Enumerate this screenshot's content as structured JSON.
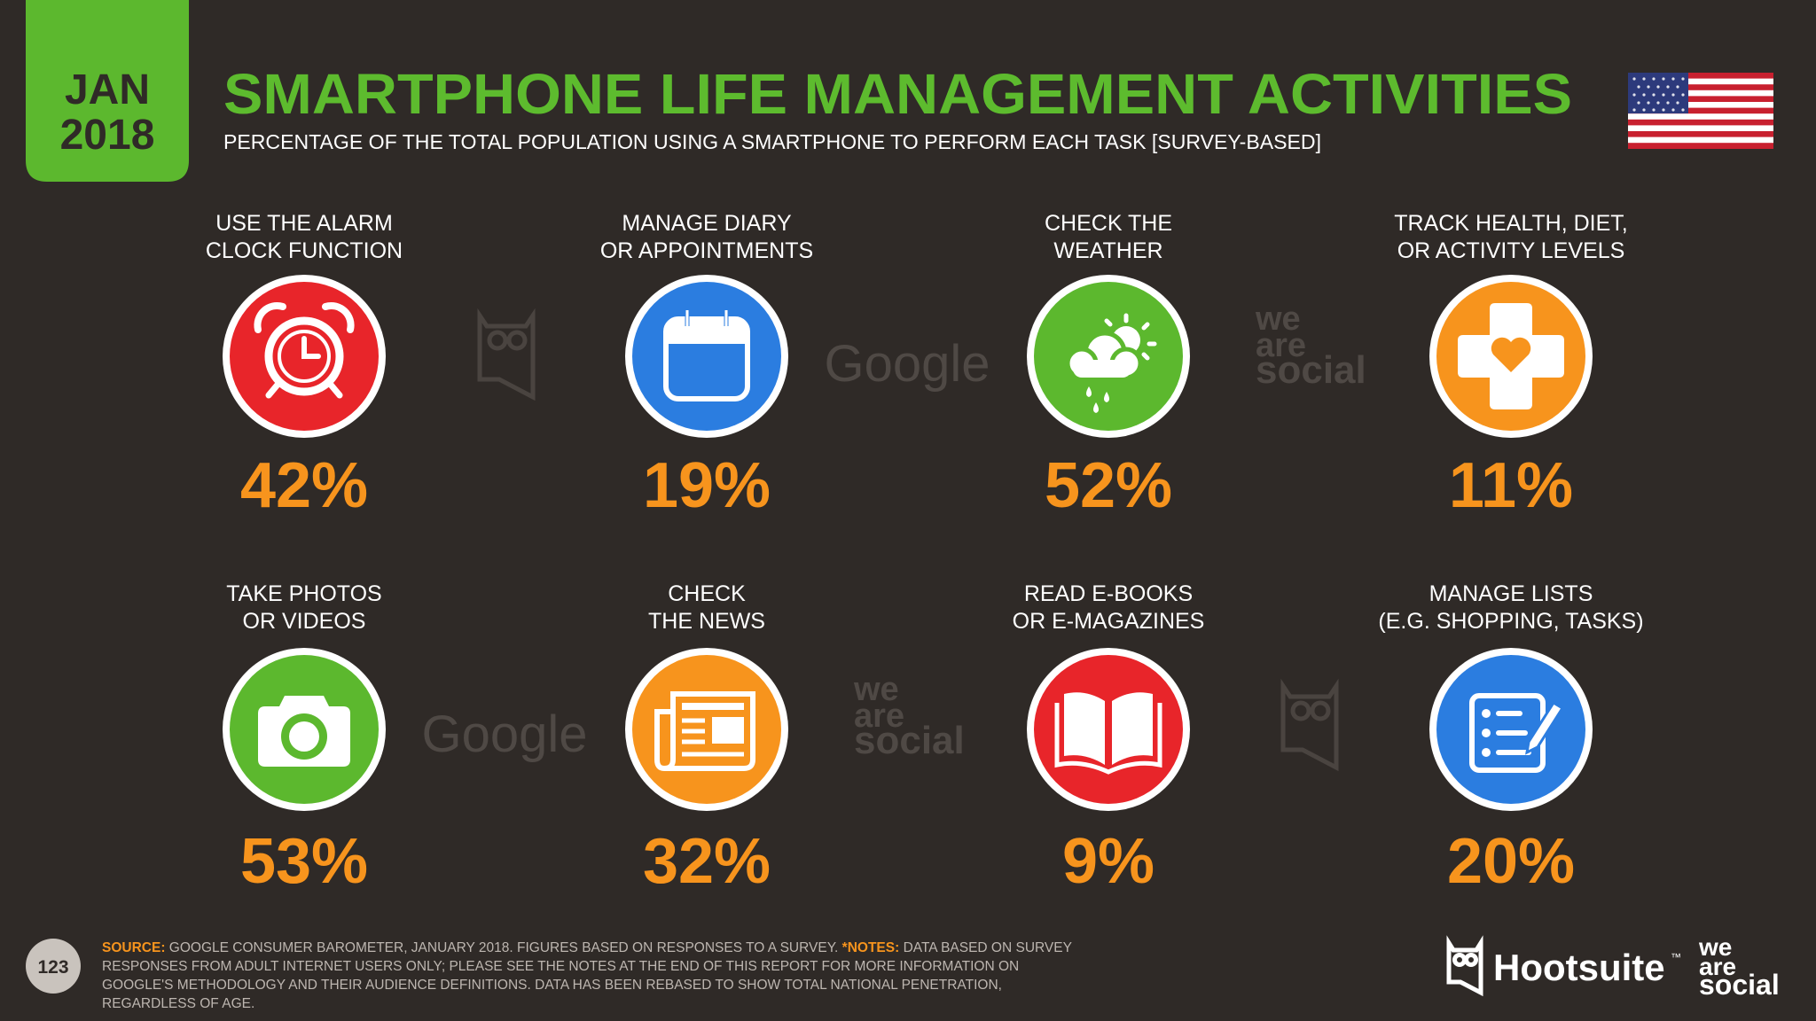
{
  "badge": {
    "month": "JAN",
    "year": "2018"
  },
  "header": {
    "title": "SMARTPHONE LIFE MANAGEMENT ACTIVITIES",
    "subtitle": "PERCENTAGE OF THE TOTAL POPULATION USING A SMARTPHONE TO PERFORM EACH TASK [SURVEY-BASED]"
  },
  "items": [
    {
      "label": [
        "USE THE ALARM",
        "CLOCK FUNCTION"
      ],
      "value": "42%"
    },
    {
      "label": [
        "MANAGE DIARY",
        "OR APPOINTMENTS"
      ],
      "value": "19%"
    },
    {
      "label": [
        "CHECK THE",
        "WEATHER"
      ],
      "value": "52%"
    },
    {
      "label": [
        "TRACK HEALTH, DIET,",
        "OR ACTIVITY LEVELS"
      ],
      "value": "11%"
    },
    {
      "label": [
        "TAKE PHOTOS",
        "OR VIDEOS"
      ],
      "value": "53%"
    },
    {
      "label": [
        "CHECK",
        "THE NEWS"
      ],
      "value": "32%"
    },
    {
      "label": [
        "READ E-BOOKS",
        "OR E-MAGAZINES"
      ],
      "value": "9%"
    },
    {
      "label": [
        "MANAGE LISTS",
        "(E.G. SHOPPING, TASKS)"
      ],
      "value": "20%"
    }
  ],
  "watermarks": [
    [
      "Google"
    ],
    [
      "we",
      "are",
      "social"
    ],
    [
      "Google"
    ],
    [
      "we",
      "are",
      "social"
    ]
  ],
  "footer": {
    "page": "123",
    "source_label": "SOURCE:",
    "source": "GOOGLE CONSUMER BAROMETER, JANUARY 2018. FIGURES BASED ON RESPONSES TO A SURVEY.",
    "notes_label": "*NOTES:",
    "notes": "DATA BASED ON SURVEY RESPONSES FROM ADULT INTERNET USERS ONLY; PLEASE SEE THE NOTES AT THE END OF THIS REPORT FOR MORE INFORMATION ON GOOGLE'S METHODOLOGY AND THEIR AUDIENCE DEFINITIONS. DATA HAS BEEN REBASED TO SHOW TOTAL NATIONAL PENETRATION, REGARDLESS OF AGE.",
    "brand": "Hootsuite",
    "trademark": "™",
    "partner": [
      "we",
      "are",
      "social"
    ]
  }
}
